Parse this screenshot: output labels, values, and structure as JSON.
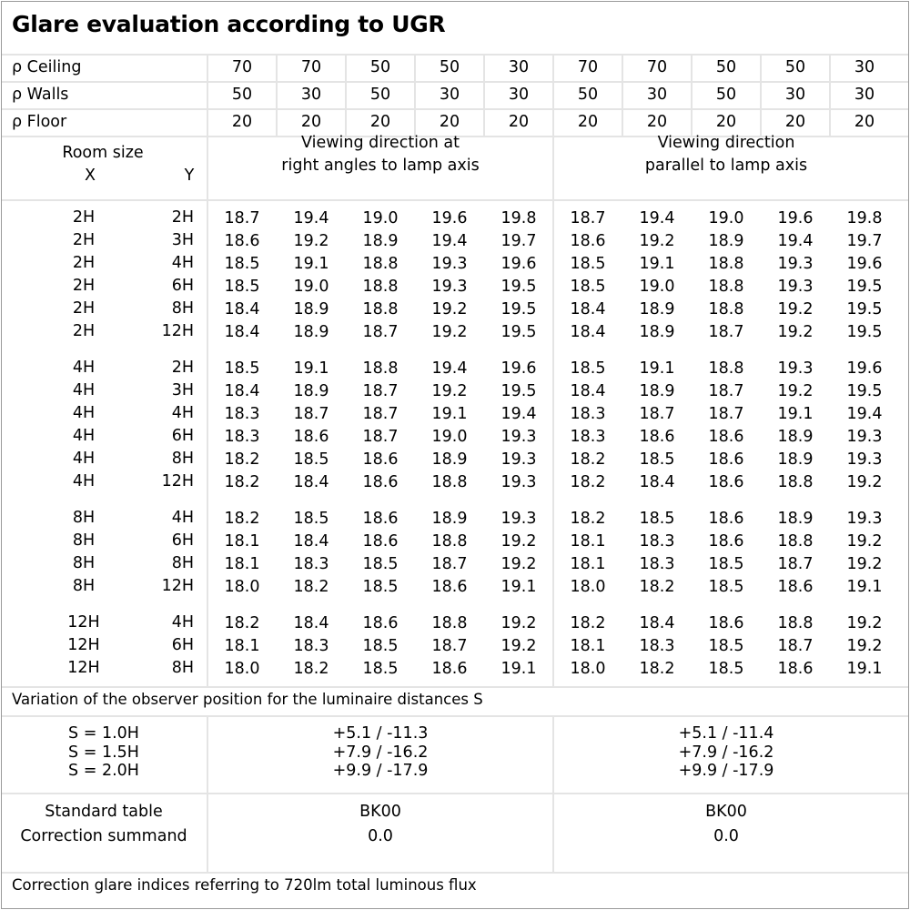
{
  "title": "Glare evaluation according to UGR",
  "reflectances": [
    {
      "label": "ρ Ceiling",
      "values": [
        "70",
        "70",
        "50",
        "50",
        "30",
        "70",
        "70",
        "50",
        "50",
        "30"
      ]
    },
    {
      "label": "ρ Walls",
      "values": [
        "50",
        "30",
        "50",
        "30",
        "30",
        "50",
        "30",
        "50",
        "30",
        "30"
      ]
    },
    {
      "label": "ρ Floor",
      "values": [
        "20",
        "20",
        "20",
        "20",
        "20",
        "20",
        "20",
        "20",
        "20",
        "20"
      ]
    }
  ],
  "header": {
    "room_size": "Room size",
    "x": "X",
    "y": "Y",
    "view_right_angles": [
      "Viewing direction at",
      "right angles to lamp axis"
    ],
    "view_parallel": [
      "Viewing direction",
      "parallel to lamp axis"
    ]
  },
  "groups": [
    [
      {
        "x": "2H",
        "y": "2H",
        "values": [
          "18.7",
          "19.4",
          "19.0",
          "19.6",
          "19.8",
          "18.7",
          "19.4",
          "19.0",
          "19.6",
          "19.8"
        ]
      },
      {
        "x": "2H",
        "y": "3H",
        "values": [
          "18.6",
          "19.2",
          "18.9",
          "19.4",
          "19.7",
          "18.6",
          "19.2",
          "18.9",
          "19.4",
          "19.7"
        ]
      },
      {
        "x": "2H",
        "y": "4H",
        "values": [
          "18.5",
          "19.1",
          "18.8",
          "19.3",
          "19.6",
          "18.5",
          "19.1",
          "18.8",
          "19.3",
          "19.6"
        ]
      },
      {
        "x": "2H",
        "y": "6H",
        "values": [
          "18.5",
          "19.0",
          "18.8",
          "19.3",
          "19.5",
          "18.5",
          "19.0",
          "18.8",
          "19.3",
          "19.5"
        ]
      },
      {
        "x": "2H",
        "y": "8H",
        "values": [
          "18.4",
          "18.9",
          "18.8",
          "19.2",
          "19.5",
          "18.4",
          "18.9",
          "18.8",
          "19.2",
          "19.5"
        ]
      },
      {
        "x": "2H",
        "y": "12H",
        "values": [
          "18.4",
          "18.9",
          "18.7",
          "19.2",
          "19.5",
          "18.4",
          "18.9",
          "18.7",
          "19.2",
          "19.5"
        ]
      }
    ],
    [
      {
        "x": "4H",
        "y": "2H",
        "values": [
          "18.5",
          "19.1",
          "18.8",
          "19.4",
          "19.6",
          "18.5",
          "19.1",
          "18.8",
          "19.3",
          "19.6"
        ]
      },
      {
        "x": "4H",
        "y": "3H",
        "values": [
          "18.4",
          "18.9",
          "18.7",
          "19.2",
          "19.5",
          "18.4",
          "18.9",
          "18.7",
          "19.2",
          "19.5"
        ]
      },
      {
        "x": "4H",
        "y": "4H",
        "values": [
          "18.3",
          "18.7",
          "18.7",
          "19.1",
          "19.4",
          "18.3",
          "18.7",
          "18.7",
          "19.1",
          "19.4"
        ]
      },
      {
        "x": "4H",
        "y": "6H",
        "values": [
          "18.3",
          "18.6",
          "18.7",
          "19.0",
          "19.3",
          "18.3",
          "18.6",
          "18.6",
          "18.9",
          "19.3"
        ]
      },
      {
        "x": "4H",
        "y": "8H",
        "values": [
          "18.2",
          "18.5",
          "18.6",
          "18.9",
          "19.3",
          "18.2",
          "18.5",
          "18.6",
          "18.9",
          "19.3"
        ]
      },
      {
        "x": "4H",
        "y": "12H",
        "values": [
          "18.2",
          "18.4",
          "18.6",
          "18.8",
          "19.3",
          "18.2",
          "18.4",
          "18.6",
          "18.8",
          "19.2"
        ]
      }
    ],
    [
      {
        "x": "8H",
        "y": "4H",
        "values": [
          "18.2",
          "18.5",
          "18.6",
          "18.9",
          "19.3",
          "18.2",
          "18.5",
          "18.6",
          "18.9",
          "19.3"
        ]
      },
      {
        "x": "8H",
        "y": "6H",
        "values": [
          "18.1",
          "18.4",
          "18.6",
          "18.8",
          "19.2",
          "18.1",
          "18.3",
          "18.6",
          "18.8",
          "19.2"
        ]
      },
      {
        "x": "8H",
        "y": "8H",
        "values": [
          "18.1",
          "18.3",
          "18.5",
          "18.7",
          "19.2",
          "18.1",
          "18.3",
          "18.5",
          "18.7",
          "19.2"
        ]
      },
      {
        "x": "8H",
        "y": "12H",
        "values": [
          "18.0",
          "18.2",
          "18.5",
          "18.6",
          "19.1",
          "18.0",
          "18.2",
          "18.5",
          "18.6",
          "19.1"
        ]
      }
    ],
    [
      {
        "x": "12H",
        "y": "4H",
        "values": [
          "18.2",
          "18.4",
          "18.6",
          "18.8",
          "19.2",
          "18.2",
          "18.4",
          "18.6",
          "18.8",
          "19.2"
        ]
      },
      {
        "x": "12H",
        "y": "6H",
        "values": [
          "18.1",
          "18.3",
          "18.5",
          "18.7",
          "19.2",
          "18.1",
          "18.3",
          "18.5",
          "18.7",
          "19.2"
        ]
      },
      {
        "x": "12H",
        "y": "8H",
        "values": [
          "18.0",
          "18.2",
          "18.5",
          "18.6",
          "19.1",
          "18.0",
          "18.2",
          "18.5",
          "18.6",
          "19.1"
        ]
      }
    ]
  ],
  "variation": {
    "heading": "Variation of the observer position for the luminaire distances S",
    "rows": [
      {
        "s": "S = 1.0H",
        "right_angles": "+5.1 / -11.3",
        "parallel": "+5.1 / -11.4"
      },
      {
        "s": "S = 1.5H",
        "right_angles": "+7.9 / -16.2",
        "parallel": "+7.9 / -16.2"
      },
      {
        "s": "S = 2.0H",
        "right_angles": "+9.9 / -17.9",
        "parallel": "+9.9 / -17.9"
      }
    ]
  },
  "standard": {
    "standard_table_label": "Standard table",
    "correction_label": "Correction summand",
    "right_angles": {
      "table": "BK00",
      "correction": "0.0"
    },
    "parallel": {
      "table": "BK00",
      "correction": "0.0"
    }
  },
  "footer": "Correction glare indices referring to 720lm total luminous flux"
}
